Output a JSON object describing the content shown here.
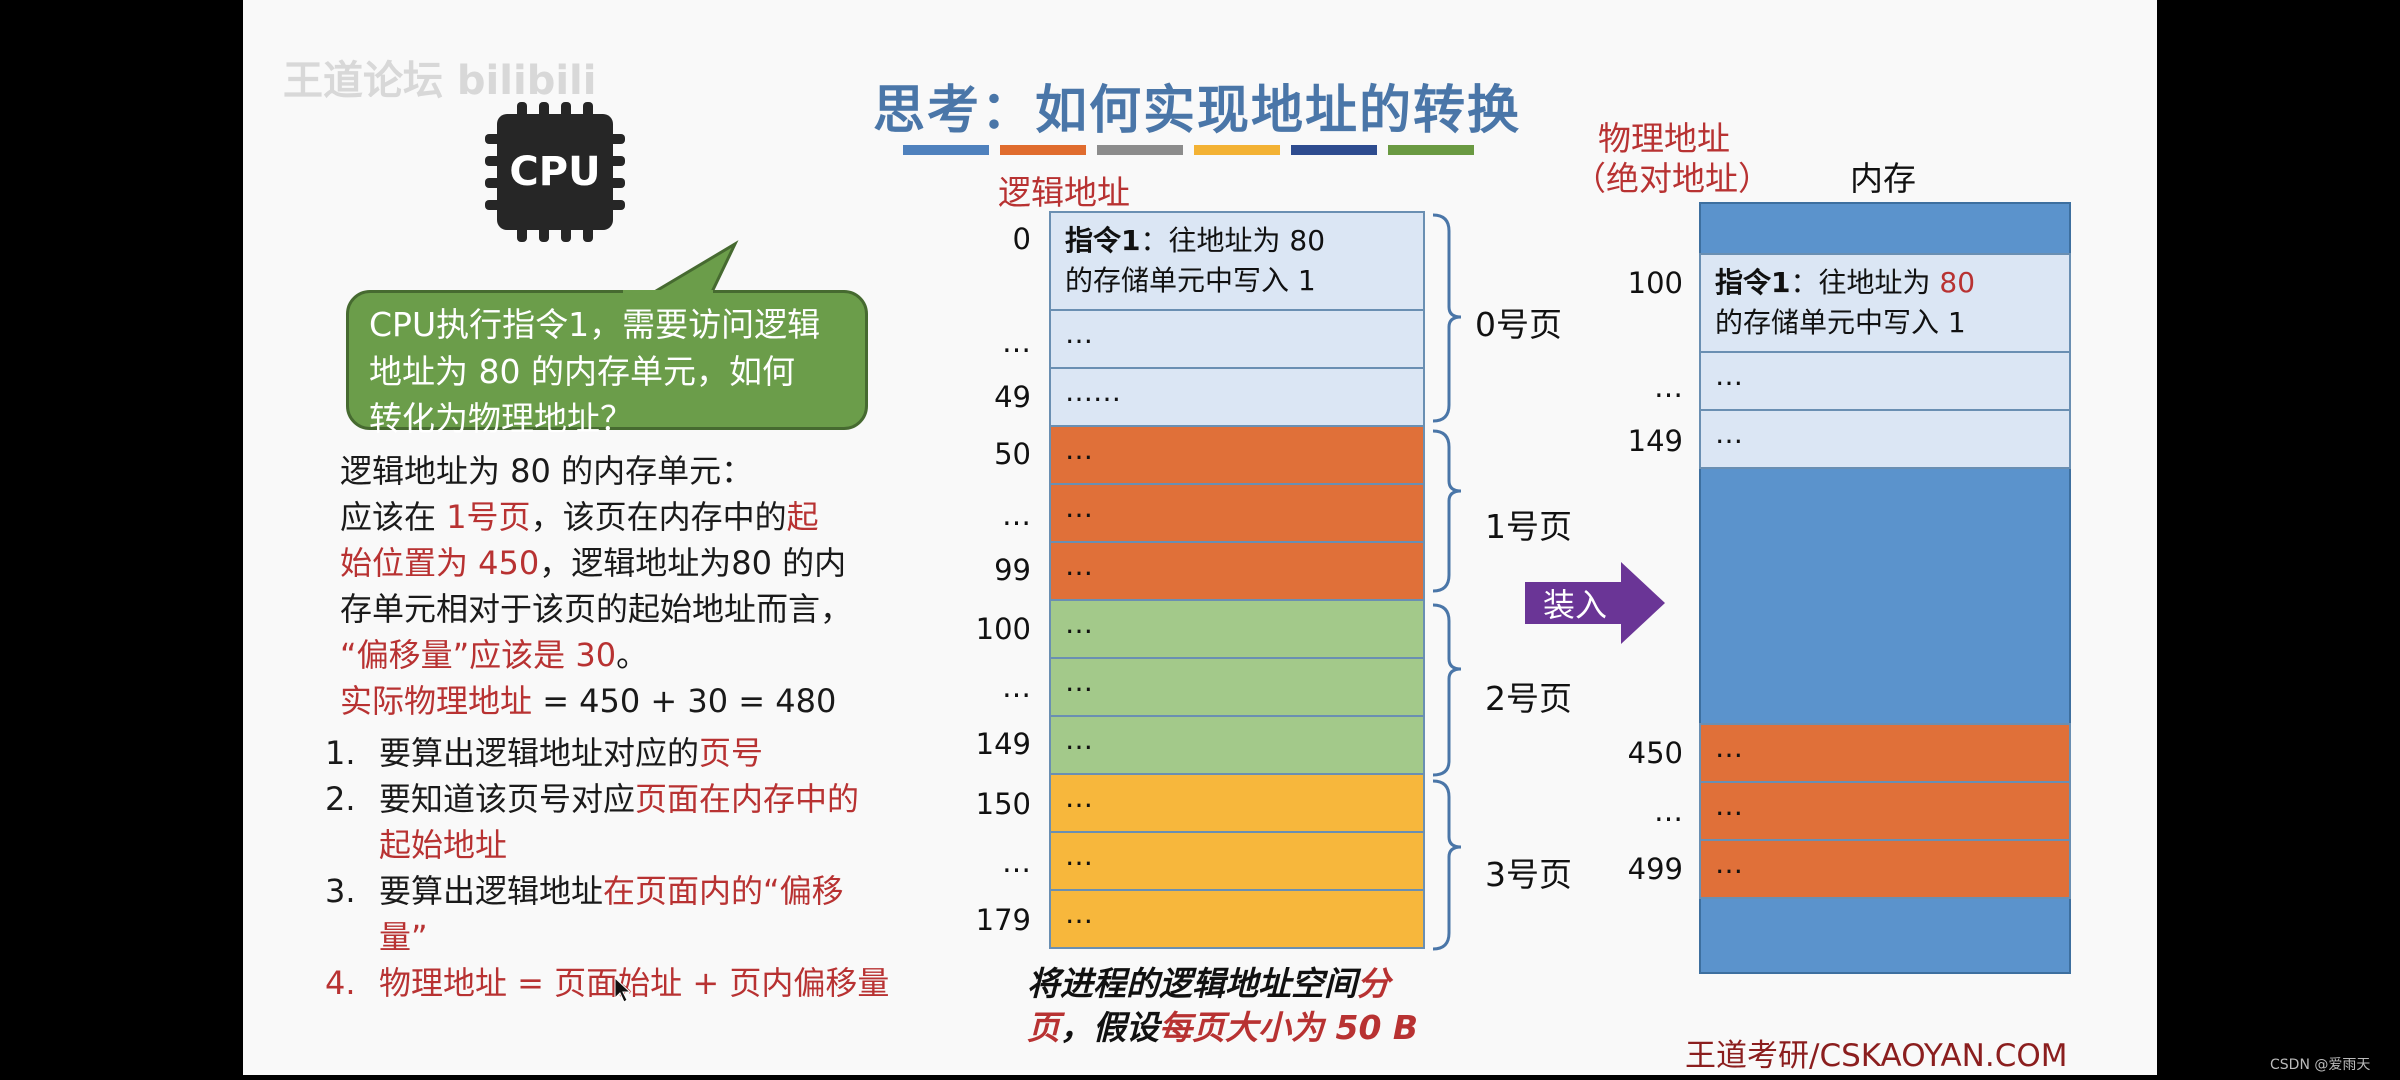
{
  "watermark": "王道论坛 bilibili",
  "title": "思考：如何实现地址的转换",
  "title_bar_colors": [
    "#4f81bd",
    "#e06c2e",
    "#8c8c8c",
    "#f3b234",
    "#2e4c8f",
    "#6a9a42"
  ],
  "cpu": {
    "label": "CPU"
  },
  "bubble": {
    "line1": "CPU执行指令1，需要访问逻辑",
    "line2": "地址为 80 的内存单元，如何",
    "line3": "转化为物理地址？"
  },
  "explain": {
    "l1": "逻辑地址为 80 的内存单元：",
    "l2a": "应该在 ",
    "l2b": "1号页",
    "l2c": "，该页在内存中的",
    "l2d": "起",
    "l3a": "始位置为 450",
    "l3b": "，逻辑地址为80 的内",
    "l4": "存单元相对于该页的起始地址而言，",
    "l5a": "“偏移量”应该是 30",
    "l5b": "。",
    "l6a": "实际物理地址",
    "l6b": " = 450 + 30 = 480"
  },
  "steps": {
    "s1n": "1.",
    "s1a": "要算出逻辑地址对应的",
    "s1b": "页号",
    "s2n": "2.",
    "s2a": "要知道该页号对应",
    "s2b": "页面在内存中的",
    "s2c": "起始地址",
    "s3n": "3.",
    "s3a": "要算出逻辑地址",
    "s3b": "在页面内的“偏移",
    "s3c": "量”",
    "s4n": "4.",
    "s4a": "物理地址 = 页面始址 + 页内偏移量"
  },
  "logical": {
    "header": "逻辑地址",
    "labels": [
      "0",
      "…",
      "49",
      "50",
      "…",
      "99",
      "100",
      "…",
      "149",
      "150",
      "…",
      "179"
    ],
    "cell0_a": "指令1",
    "cell0_b": "：往地址为 80",
    "cell0_c": "的存储单元中写入 1",
    "cells": [
      "…",
      "……",
      "…",
      "…",
      "…",
      "…",
      "…",
      "…",
      "…",
      "…",
      "…"
    ],
    "pages": [
      "0号页",
      "1号页",
      "2号页",
      "3号页"
    ],
    "page_colors": [
      "#dbe6f4",
      "#e07039",
      "#a3c98a",
      "#f7b73c"
    ]
  },
  "caption": {
    "a": "将进程的逻辑地址空间",
    "b": "分",
    "c": "页",
    "d": "，假设",
    "e": "每页大小为 50 B"
  },
  "load_arrow": {
    "label": "装入",
    "color": "#6a3596"
  },
  "physical": {
    "header1": "物理地址",
    "header2": "（绝对地址）",
    "memory_label": "内存",
    "labels": [
      "100",
      "…",
      "149",
      "450",
      "…",
      "499"
    ],
    "cell_a": "指令1",
    "cell_b": "：往地址为 ",
    "cell_c": "80",
    "cell_d": "的存储单元中写入 1",
    "cells": [
      "…",
      "…",
      "…",
      "…",
      "…"
    ],
    "bg_color": "#5b93cc"
  },
  "footer_brand": "王道考研/CSKAOYAN.COM",
  "csdn_mark": "CSDN @爱雨天"
}
